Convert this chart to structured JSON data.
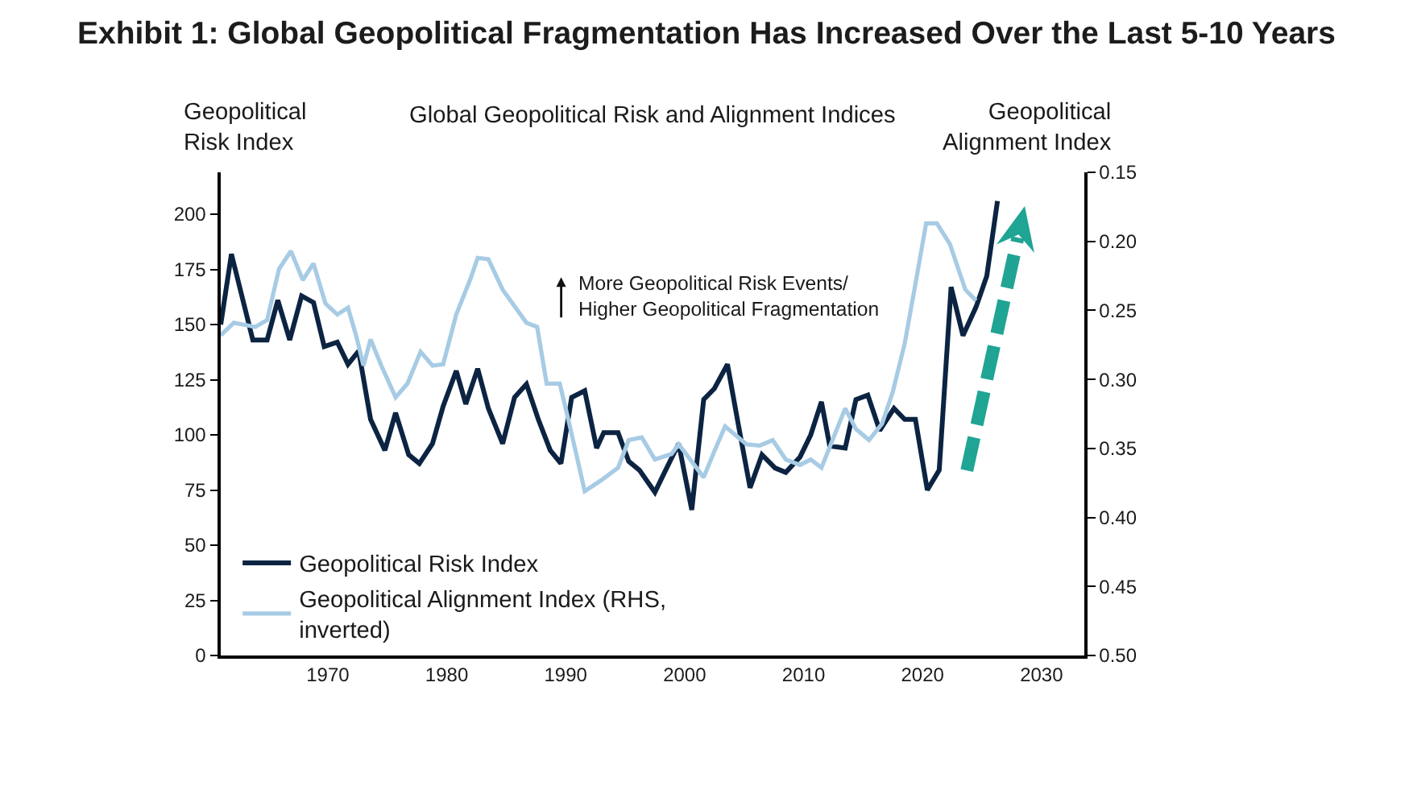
{
  "chart_data": {
    "type": "line",
    "title": "Exhibit 1: Global Geopolitical Fragmentation Has Increased Over the Last 5-10 Years",
    "subtitle": "Global Geopolitical Risk and Alignment Indices",
    "ylabel": "Geopolitical\nRisk Index",
    "y2label": "Geopolitical\nAlignment Index",
    "annotations": [
      "More Geopolitical Risk Events/\nHigher Geopolitical Fragmentation"
    ],
    "xlim": [
      1961,
      2033.6
    ],
    "xticks": [
      1970,
      1980,
      1990,
      2000,
      2010,
      2020,
      2030
    ],
    "ylim": [
      0,
      219
    ],
    "yticks": [
      0,
      25,
      50,
      75,
      100,
      125,
      150,
      175,
      200
    ],
    "y2lim": [
      0.5,
      0.15
    ],
    "y2ticks": [
      0.15,
      {
        "value": 0.2,
        "label": "0.20"
      },
      0.25,
      {
        "value": 0.3,
        "label": "0.30"
      },
      0.35,
      {
        "value": 0.4,
        "label": "0.40"
      },
      0.45,
      {
        "value": 0.5,
        "label": "0.50"
      }
    ],
    "legend": "bottom left",
    "line_style": "solid",
    "series": [
      {
        "name": "Geopolitical Risk Index",
        "color": "#0c2442",
        "x": [
          1961.0,
          1961.9,
          1963.7,
          1964.9,
          1965.8,
          1966.8,
          1967.8,
          1968.8,
          1969.7,
          1970.8,
          1971.7,
          1972.6,
          1973.6,
          1974.8,
          1975.7,
          1976.8,
          1977.7,
          1978.8,
          1979.7,
          1980.8,
          1981.6,
          1982.6,
          1983.5,
          1984.7,
          1985.7,
          1986.7,
          1987.7,
          1988.7,
          1989.6,
          1990.5,
          1991.6,
          1992.6,
          1993.2,
          1994.4,
          1995.3,
          1996.2,
          1997.5,
          1998.4,
          1999.5,
          2000.6,
          2001.6,
          2002.5,
          2003.6,
          2004.5,
          2005.5,
          2006.5,
          2007.6,
          2008.5,
          2009.7,
          2010.6,
          2011.5,
          2012.2,
          2013.5,
          2014.4,
          2015.4,
          2016.4,
          2017.6,
          2018.5,
          2019.4,
          2020.4,
          2021.4,
          2022.4,
          2023.4,
          2024.5,
          2025.4,
          2026.3
        ],
        "values": [
          150,
          182,
          143,
          143,
          161,
          143,
          163,
          160,
          140,
          142,
          132,
          138,
          107,
          93,
          110,
          91,
          87,
          96,
          113,
          129,
          114,
          130,
          112,
          96,
          117,
          123,
          107,
          93,
          87,
          117,
          120,
          94,
          101,
          101,
          88,
          84,
          74,
          84,
          96,
          66,
          116,
          121,
          132,
          105,
          76,
          91,
          85,
          83,
          90,
          100,
          115,
          95,
          94,
          116,
          118,
          102,
          112,
          107,
          107,
          75,
          84,
          167,
          145,
          158,
          172,
          206
        ]
      },
      {
        "name": "Geopolitical Alignment Index (RHS,\ninverted)",
        "color": "#a7cbe4",
        "axis": "y2",
        "x": [
          1961.0,
          1962.1,
          1963.3,
          1963.9,
          1964.9,
          1965.9,
          1966.9,
          1967.9,
          1968.8,
          1969.8,
          1970.8,
          1971.7,
          1972.4,
          1973.0,
          1973.6,
          1974.5,
          1975.7,
          1976.7,
          1977.8,
          1978.8,
          1979.7,
          1980.8,
          1982.0,
          1982.6,
          1983.5,
          1984.7,
          1985.7,
          1986.7,
          1987.6,
          1988.4,
          1989.5,
          1990.3,
          1991.6,
          1993.0,
          1994.4,
          1995.3,
          1996.4,
          1997.5,
          1998.9,
          1999.5,
          2001.6,
          2002.5,
          2003.4,
          2005.2,
          2006.3,
          2007.4,
          2008.5,
          2009.7,
          2010.6,
          2011.5,
          2013.5,
          2014.4,
          2015.5,
          2016.6,
          2017.5,
          2018.5,
          2019.4,
          2020.3,
          2021.2,
          2022.3,
          2023.6,
          2024.5
        ],
        "values": [
          0.268,
          0.259,
          0.261,
          0.262,
          0.257,
          0.22,
          0.207,
          0.228,
          0.216,
          0.245,
          0.253,
          0.248,
          0.269,
          0.29,
          0.271,
          0.29,
          0.313,
          0.303,
          0.28,
          0.29,
          0.289,
          0.253,
          0.227,
          0.212,
          0.213,
          0.235,
          0.247,
          0.259,
          0.262,
          0.303,
          0.303,
          0.332,
          0.381,
          0.373,
          0.364,
          0.344,
          0.342,
          0.358,
          0.354,
          0.347,
          0.371,
          0.352,
          0.334,
          0.347,
          0.348,
          0.344,
          0.358,
          0.362,
          0.358,
          0.364,
          0.321,
          0.336,
          0.344,
          0.332,
          0.309,
          0.274,
          0.231,
          0.187,
          0.187,
          0.202,
          0.235,
          0.243
        ]
      }
    ]
  }
}
